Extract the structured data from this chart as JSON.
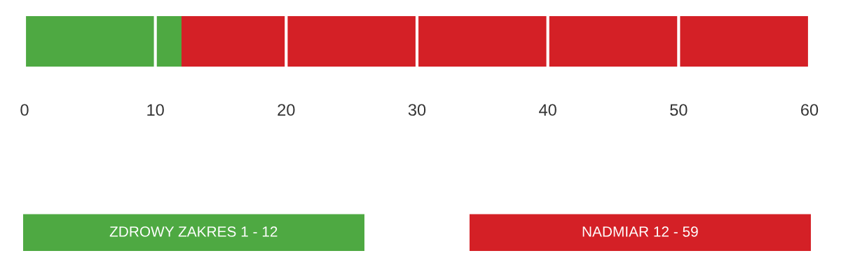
{
  "chart_data": {
    "type": "bar",
    "orientation": "horizontal",
    "stacked": true,
    "categories": [
      null
    ],
    "series": [
      {
        "name": "ZDROWY ZAKRES 1 - 12",
        "color": "#4ea942",
        "values": [
          12
        ]
      },
      {
        "name": "NADMIAR 12 - 59",
        "color": "#d42026",
        "values": [
          48
        ]
      }
    ],
    "xlim": [
      0,
      60
    ],
    "xticks": [
      0,
      10,
      20,
      30,
      40,
      50,
      60
    ],
    "grid": "x",
    "legend": "bottom",
    "tick_labels": "x"
  }
}
